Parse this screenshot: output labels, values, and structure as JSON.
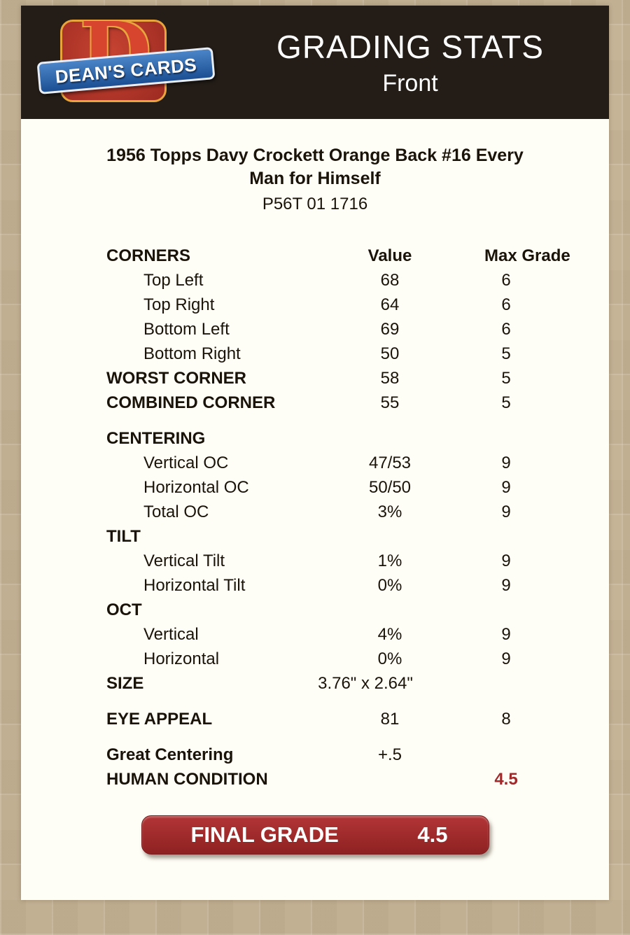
{
  "colors": {
    "page_bg": "#c8b79a",
    "header_bg": "#241d17",
    "panel_bg": "#fffef6",
    "text": "#1a1309",
    "accent_red": "#a02a2b",
    "button_red": "#9e2728",
    "ribbon_blue": "#2b66ad",
    "logo_red": "#c63b2a",
    "logo_gold": "#e9a53d"
  },
  "header": {
    "logo_letter": "D",
    "logo_text": "DEAN'S CARDS",
    "title": "GRADING STATS",
    "subtitle": "Front"
  },
  "card": {
    "title": "1956 Topps Davy Crockett Orange Back #16  Every Man for Himself",
    "code": "P56T 01 1716"
  },
  "table": {
    "rows": [
      {
        "kind": "colhead",
        "label": "CORNERS",
        "value": "Value",
        "max": "Max Grade"
      },
      {
        "kind": "item",
        "label": "Top Left",
        "value": "68",
        "max": "6"
      },
      {
        "kind": "item",
        "label": "Top Right",
        "value": "64",
        "max": "6"
      },
      {
        "kind": "item",
        "label": "Bottom Left",
        "value": "69",
        "max": "6"
      },
      {
        "kind": "item",
        "label": "Bottom Right",
        "value": "50",
        "max": "5"
      },
      {
        "kind": "caps",
        "label": "WORST CORNER",
        "value": "58",
        "max": "5"
      },
      {
        "kind": "caps",
        "label": "COMBINED CORNER",
        "value": "55",
        "max": "5"
      },
      {
        "kind": "gap"
      },
      {
        "kind": "caps",
        "label": "CENTERING",
        "value": "",
        "max": ""
      },
      {
        "kind": "item",
        "label": "Vertical OC",
        "value": "47/53",
        "max": "9"
      },
      {
        "kind": "item",
        "label": "Horizontal OC",
        "value": "50/50",
        "max": "9"
      },
      {
        "kind": "item",
        "label": "Total OC",
        "value": "3%",
        "max": "9"
      },
      {
        "kind": "caps",
        "label": "TILT",
        "value": "",
        "max": ""
      },
      {
        "kind": "item",
        "label": "Vertical Tilt",
        "value": "1%",
        "max": "9"
      },
      {
        "kind": "item",
        "label": "Horizontal Tilt",
        "value": "0%",
        "max": "9"
      },
      {
        "kind": "caps",
        "label": "OCT",
        "value": "",
        "max": ""
      },
      {
        "kind": "item",
        "label": "Vertical",
        "value": "4%",
        "max": "9"
      },
      {
        "kind": "item",
        "label": "Horizontal",
        "value": "0%",
        "max": "9"
      },
      {
        "kind": "caps",
        "label": "SIZE",
        "value": "3.76\" x 2.64\"",
        "max": "",
        "shift": true
      },
      {
        "kind": "gap"
      },
      {
        "kind": "caps",
        "label": "EYE APPEAL",
        "value": "81",
        "max": "8"
      },
      {
        "kind": "gap"
      },
      {
        "kind": "mixed",
        "label": "Great Centering",
        "value": "+.5",
        "max": ""
      },
      {
        "kind": "caps",
        "label": "HUMAN CONDITION",
        "value": "",
        "max": "4.5",
        "maxRed": true
      }
    ]
  },
  "final_grade": {
    "label": "FINAL GRADE",
    "value": "4.5"
  }
}
